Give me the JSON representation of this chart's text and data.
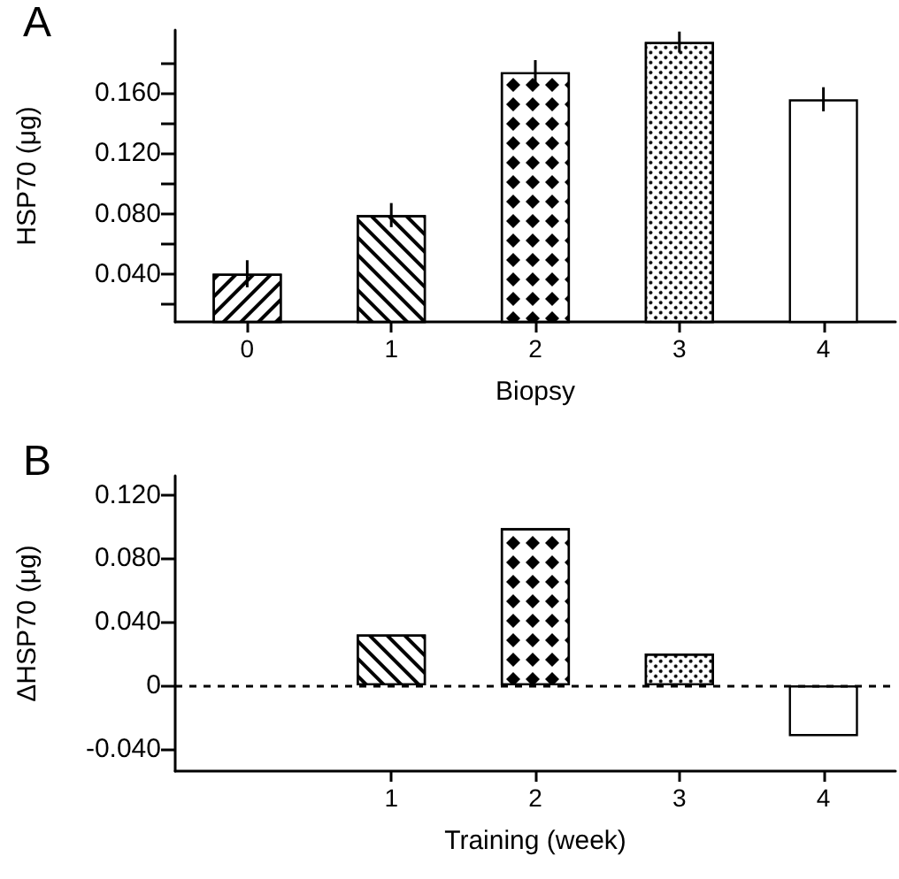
{
  "chart_data": [
    {
      "type": "bar",
      "title": "A",
      "xlabel": "Biopsy",
      "ylabel": "HSP70 (μg)",
      "categories": [
        "0",
        "1",
        "2",
        "3",
        "4"
      ],
      "values": [
        0.04,
        0.079,
        0.174,
        0.194,
        0.156
      ],
      "errors": [
        0.009,
        0.008,
        0.008,
        0.007,
        0.008
      ],
      "color": "#ffffff",
      "ylim": [
        0.008,
        0.202
      ],
      "yticks": [
        {
          "value": 0.02,
          "label": null
        },
        {
          "value": 0.04,
          "label": "0.040"
        },
        {
          "value": 0.06,
          "label": null
        },
        {
          "value": 0.08,
          "label": "0.080"
        },
        {
          "value": 0.1,
          "label": null
        },
        {
          "value": 0.12,
          "label": "0.120"
        },
        {
          "value": 0.14,
          "label": null
        },
        {
          "value": 0.16,
          "label": "0.160"
        },
        {
          "value": 0.18,
          "label": null
        }
      ],
      "grid": false
    },
    {
      "type": "bar",
      "title": "B",
      "xlabel": "Training (week)",
      "ylabel": "ΔHSP70 (μg)",
      "categories": [
        null,
        "1",
        "2",
        "3",
        "4"
      ],
      "values": [
        null,
        0.032,
        0.099,
        0.02,
        -0.032
      ],
      "color": "#ffffff",
      "ylim": [
        -0.054,
        0.132
      ],
      "yticks": [
        {
          "value": -0.04,
          "label": "-0.040"
        },
        0,
        {
          "value": 0.04,
          "label": "0.040"
        },
        {
          "value": 0.08,
          "label": "0.080"
        },
        {
          "value": 0.12,
          "label": "0.120"
        }
      ],
      "ref_lines": [
        {
          "axis": "y",
          "value": 0,
          "line_style": "dashed",
          "color": "#000000"
        }
      ],
      "grid": false
    }
  ]
}
